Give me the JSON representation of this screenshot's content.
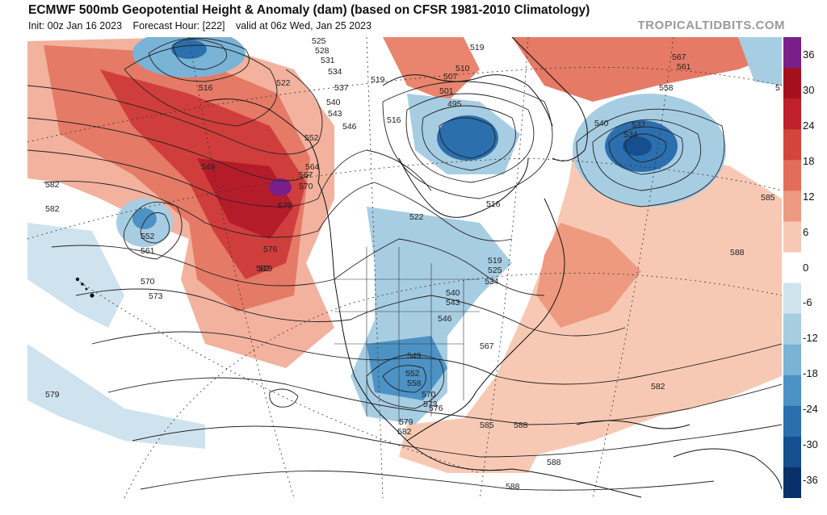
{
  "header": {
    "title": "ECMWF 500mb Geopotential Height & Anomaly (dam) (based on CFSR 1981-2010 Climatology)",
    "init": "Init: 00z Jan 16 2023",
    "forecast_hour": "Forecast Hour: [222]",
    "valid": "valid at 06z Wed, Jan 25 2023",
    "brand": "TROPICALTIDBITS.COM"
  },
  "colorbar": {
    "labels": [
      "36",
      "30",
      "24",
      "18",
      "12",
      "6",
      "0",
      "-6",
      "-12",
      "-18",
      "-24",
      "-30",
      "-36"
    ],
    "colors": [
      "#7a1f8a",
      "#a5101f",
      "#c0202a",
      "#d3443c",
      "#e26e5a",
      "#ee9a80",
      "#f7c9b4",
      "#ffffff",
      "#cfe3ee",
      "#a7cde3",
      "#79b3d6",
      "#4d92c4",
      "#2b6fae",
      "#164f8f",
      "#08306b"
    ]
  },
  "contour_labels": [
    "516",
    "522",
    "525",
    "528",
    "531",
    "534",
    "537",
    "540",
    "543",
    "546",
    "552",
    "549",
    "564",
    "567",
    "570",
    "579",
    "582",
    "552",
    "561",
    "570",
    "573",
    "576",
    "579",
    "519",
    "519",
    "510",
    "507",
    "501",
    "495",
    "516",
    "516",
    "522",
    "519",
    "525",
    "534",
    "540",
    "543",
    "546",
    "549",
    "552",
    "558",
    "567",
    "570",
    "573",
    "576",
    "579",
    "582",
    "585",
    "588",
    "588",
    "588",
    "537",
    "534",
    "540",
    "558",
    "561",
    "567",
    "573",
    "585",
    "588",
    "582",
    "582",
    "582",
    "579"
  ]
}
